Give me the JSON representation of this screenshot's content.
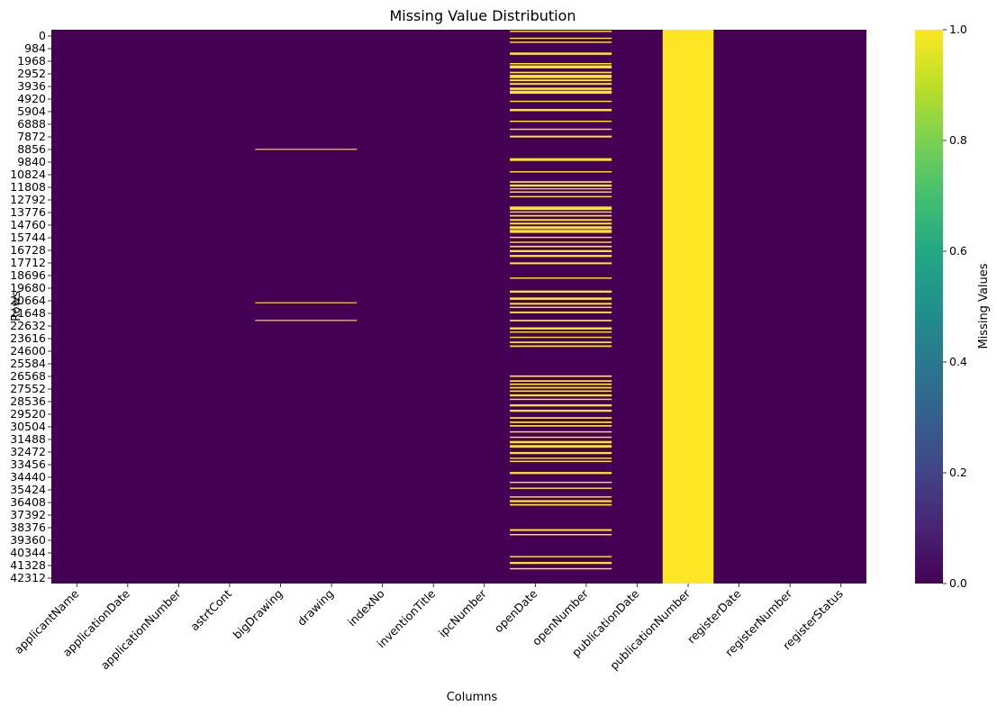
{
  "chart_data": {
    "type": "heatmap",
    "title": "Missing Value Distribution",
    "xlabel": "Columns",
    "ylabel": "Rows",
    "columns": [
      "applicantName",
      "applicationDate",
      "applicationNumber",
      "astrtCont",
      "bigDrawing",
      "drawing",
      "indexNo",
      "inventionTitle",
      "ipcNumber",
      "openDate",
      "openNumber",
      "publicationDate",
      "publicationNumber",
      "registerDate",
      "registerNumber",
      "registerStatus"
    ],
    "row_tick_labels": [
      "0",
      "984",
      "1968",
      "2952",
      "3936",
      "4920",
      "5904",
      "6888",
      "7872",
      "8856",
      "9840",
      "10824",
      "11808",
      "12792",
      "13776",
      "14760",
      "15744",
      "16728",
      "17712",
      "18696",
      "19680",
      "20664",
      "21648",
      "22632",
      "23616",
      "24600",
      "25584",
      "26568",
      "27552",
      "28536",
      "29520",
      "30504",
      "31488",
      "32472",
      "33456",
      "34440",
      "35424",
      "36408",
      "37392",
      "38376",
      "39360",
      "40344",
      "41328",
      "42312"
    ],
    "row_tick_step": 984,
    "total_rows": 43300,
    "value_range": [
      0,
      1
    ],
    "colormap": "viridis",
    "colorbar": {
      "label": "Missing Values",
      "ticks": [
        "0.0",
        "0.2",
        "0.4",
        "0.6",
        "0.8",
        "1.0"
      ]
    },
    "missing_segments": [
      {
        "columns": [
          "publicationNumber"
        ],
        "rows": [
          [
            0,
            43300
          ]
        ]
      },
      {
        "columns": [
          "bigDrawing",
          "drawing"
        ],
        "rows": [
          [
            9300,
            9380
          ],
          [
            21270,
            21350
          ],
          [
            22650,
            22730
          ]
        ]
      },
      {
        "columns": [
          "openDate",
          "openNumber"
        ],
        "rows": [
          [
            80,
            180
          ],
          [
            620,
            720
          ],
          [
            930,
            1030
          ],
          [
            1780,
            1960
          ],
          [
            2600,
            2700
          ],
          [
            2780,
            3020
          ],
          [
            3280,
            3400
          ],
          [
            3520,
            3780
          ],
          [
            3880,
            4020
          ],
          [
            4160,
            4300
          ],
          [
            4520,
            4700
          ],
          [
            4760,
            5000
          ],
          [
            5540,
            5640
          ],
          [
            6180,
            6360
          ],
          [
            7100,
            7200
          ],
          [
            7720,
            7820
          ],
          [
            8270,
            8410
          ],
          [
            10030,
            10240
          ],
          [
            11040,
            11140
          ],
          [
            11820,
            11940
          ],
          [
            12080,
            12250
          ],
          [
            12370,
            12460
          ],
          [
            12620,
            12720
          ],
          [
            12980,
            13080
          ],
          [
            13800,
            14060
          ],
          [
            14180,
            14280
          ],
          [
            14460,
            14580
          ],
          [
            14780,
            14920
          ],
          [
            15060,
            15200
          ],
          [
            15340,
            15560
          ],
          [
            15620,
            15860
          ],
          [
            16160,
            16260
          ],
          [
            16540,
            16640
          ],
          [
            16860,
            16980
          ],
          [
            17200,
            17360
          ],
          [
            17580,
            17740
          ],
          [
            18160,
            18300
          ],
          [
            19340,
            19440
          ],
          [
            20360,
            20520
          ],
          [
            20900,
            21080
          ],
          [
            21320,
            21460
          ],
          [
            21620,
            21720
          ],
          [
            22000,
            22130
          ],
          [
            22640,
            22760
          ],
          [
            23230,
            23400
          ],
          [
            23550,
            23650
          ],
          [
            23960,
            24060
          ],
          [
            24340,
            24460
          ],
          [
            24640,
            24760
          ],
          [
            26980,
            27100
          ],
          [
            27360,
            27480
          ],
          [
            27610,
            27730
          ],
          [
            27880,
            28000
          ],
          [
            28150,
            28260
          ],
          [
            28460,
            28620
          ],
          [
            28800,
            28900
          ],
          [
            29240,
            29400
          ],
          [
            29660,
            29820
          ],
          [
            30240,
            30360
          ],
          [
            30580,
            30700
          ],
          [
            30860,
            30980
          ],
          [
            31340,
            31440
          ],
          [
            31760,
            31860
          ],
          [
            32100,
            32280
          ],
          [
            32420,
            32620
          ],
          [
            32960,
            33120
          ],
          [
            33400,
            33500
          ],
          [
            33640,
            33740
          ],
          [
            34520,
            34680
          ],
          [
            35280,
            35380
          ],
          [
            35740,
            35840
          ],
          [
            36420,
            36520
          ],
          [
            36720,
            36880
          ],
          [
            37020,
            37140
          ],
          [
            38980,
            39120
          ],
          [
            39360,
            39460
          ],
          [
            41080,
            41180
          ],
          [
            41540,
            41700
          ],
          [
            42020,
            42120
          ]
        ]
      }
    ]
  }
}
